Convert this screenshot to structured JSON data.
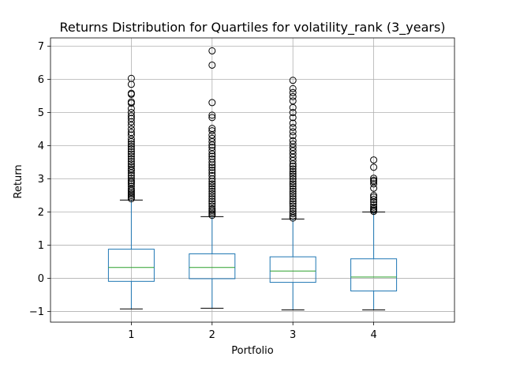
{
  "chart_data": {
    "type": "boxplot",
    "title": "Returns Distribution for Quartiles for volatility_rank (3_years)",
    "xlabel": "Portfolio",
    "ylabel": "Return",
    "ylim": [
      -1.32,
      7.25
    ],
    "yticks": [
      -1,
      0,
      1,
      2,
      3,
      4,
      5,
      6,
      7
    ],
    "grid": true,
    "categories": [
      "1",
      "2",
      "3",
      "4"
    ],
    "boxes": [
      {
        "category": "1",
        "whisker_low": -0.92,
        "q1": -0.09,
        "median": 0.33,
        "q3": 0.88,
        "whisker_high": 2.36,
        "fliers": [
          2.4,
          2.45,
          2.5,
          2.55,
          2.6,
          2.65,
          2.7,
          2.78,
          2.85,
          2.9,
          2.95,
          3.02,
          3.1,
          3.18,
          3.25,
          3.3,
          3.38,
          3.45,
          3.52,
          3.6,
          3.68,
          3.75,
          3.82,
          3.9,
          3.98,
          4.05,
          4.12,
          4.2,
          4.32,
          4.4,
          4.5,
          4.62,
          4.72,
          4.82,
          4.9,
          5.0,
          5.12,
          5.28,
          5.32,
          5.55,
          5.58,
          5.85,
          6.03
        ]
      },
      {
        "category": "2",
        "whisker_low": -0.9,
        "q1": -0.01,
        "median": 0.33,
        "q3": 0.74,
        "whisker_high": 1.86,
        "fliers": [
          1.9,
          1.95,
          2.0,
          2.05,
          2.1,
          2.18,
          2.25,
          2.32,
          2.4,
          2.48,
          2.55,
          2.62,
          2.7,
          2.78,
          2.85,
          2.92,
          3.0,
          3.1,
          3.18,
          3.26,
          3.35,
          3.42,
          3.5,
          3.6,
          3.68,
          3.75,
          3.85,
          3.95,
          4.02,
          4.12,
          4.22,
          4.32,
          4.45,
          4.52,
          4.85,
          4.92,
          5.3,
          6.43,
          6.86
        ]
      },
      {
        "category": "3",
        "whisker_low": -0.95,
        "q1": -0.12,
        "median": 0.22,
        "q3": 0.65,
        "whisker_high": 1.79,
        "fliers": [
          1.82,
          1.88,
          1.95,
          2.02,
          2.1,
          2.18,
          2.25,
          2.32,
          2.4,
          2.48,
          2.55,
          2.62,
          2.7,
          2.78,
          2.85,
          2.92,
          3.0,
          3.08,
          3.15,
          3.22,
          3.3,
          3.38,
          3.45,
          3.55,
          3.65,
          3.75,
          3.85,
          3.95,
          4.05,
          4.15,
          4.3,
          4.42,
          4.55,
          4.68,
          4.85,
          5.0,
          5.15,
          5.35,
          5.48,
          5.6,
          5.72,
          5.97
        ]
      },
      {
        "category": "4",
        "whisker_low": -0.95,
        "q1": -0.38,
        "median": 0.04,
        "q3": 0.59,
        "whisker_high": 2.0,
        "fliers": [
          2.02,
          2.06,
          2.1,
          2.15,
          2.22,
          2.3,
          2.38,
          2.45,
          2.5,
          2.72,
          2.85,
          2.92,
          2.96,
          3.02,
          3.35,
          3.57
        ]
      }
    ]
  }
}
